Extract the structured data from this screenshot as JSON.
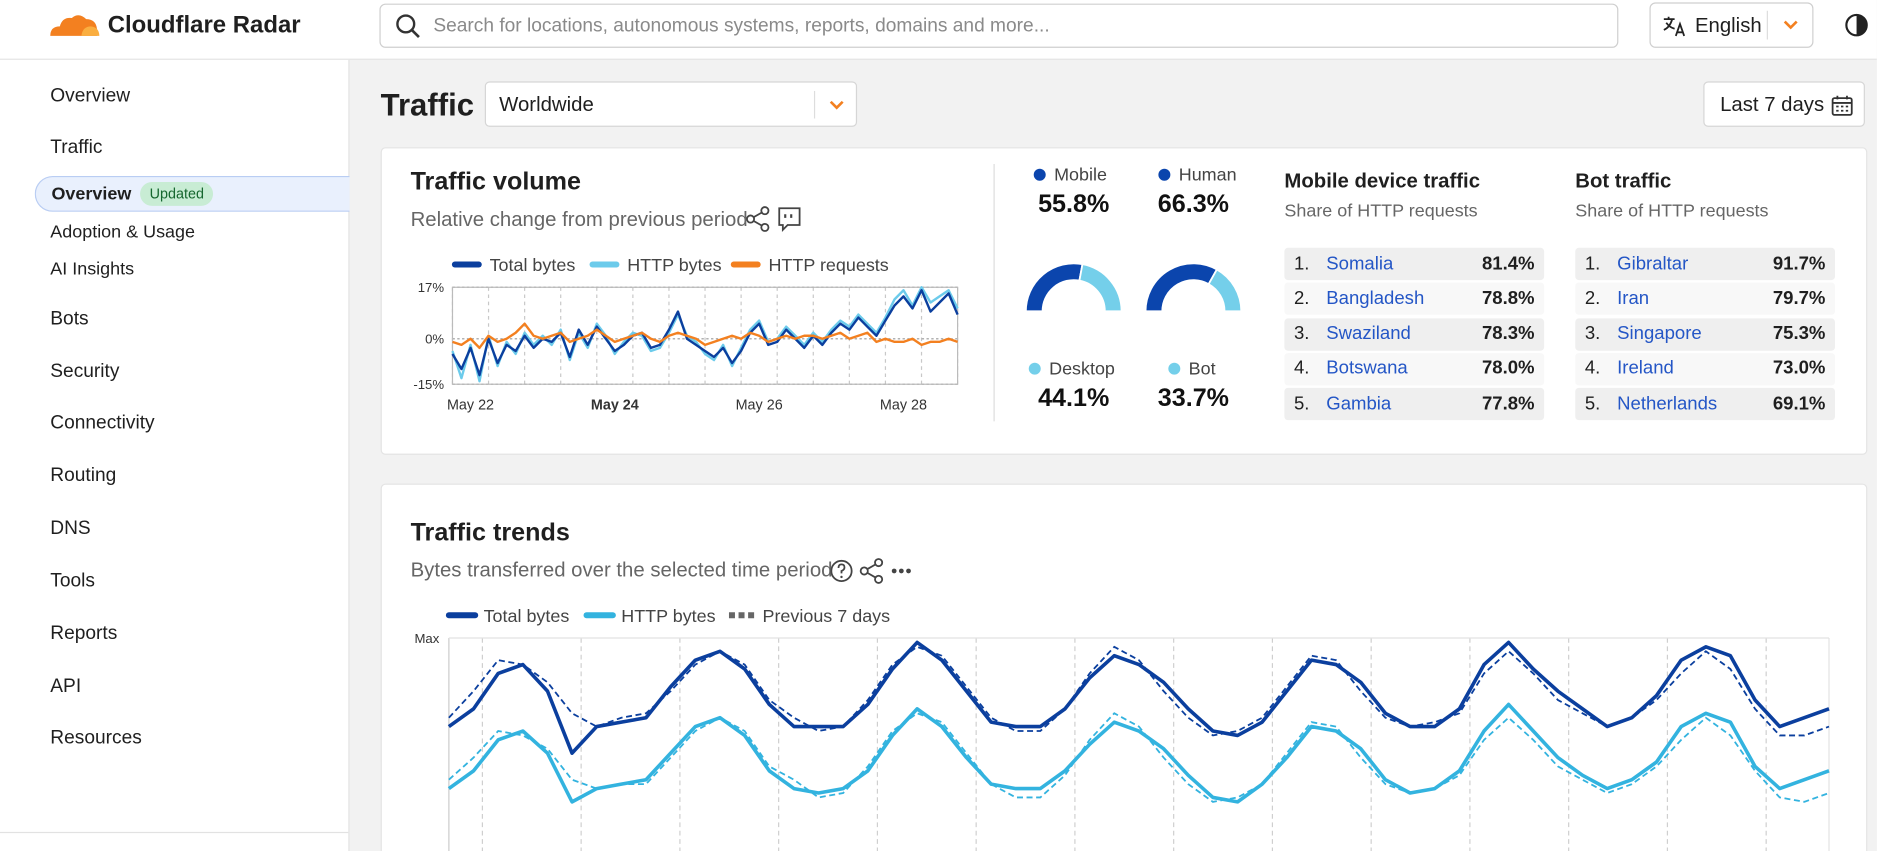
{
  "header": {
    "brand": "Cloudflare Radar",
    "search_placeholder": "Search for locations, autonomous systems, reports, domains and more...",
    "language": "English"
  },
  "sidebar": {
    "items": [
      {
        "label": "Overview"
      },
      {
        "label": "Traffic",
        "children": [
          {
            "label": "Overview",
            "badge": "Updated"
          },
          {
            "label": "Adoption & Usage"
          },
          {
            "label": "AI Insights"
          }
        ]
      },
      {
        "label": "Bots"
      },
      {
        "label": "Security"
      },
      {
        "label": "Connectivity"
      },
      {
        "label": "Routing"
      },
      {
        "label": "DNS"
      },
      {
        "label": "Tools"
      },
      {
        "label": "Reports"
      },
      {
        "label": "API"
      },
      {
        "label": "Resources"
      }
    ]
  },
  "toolbar": {
    "title": "Traffic",
    "location": "Worldwide",
    "date_range": "Last 7 days"
  },
  "traffic_volume": {
    "title": "Traffic volume",
    "subtitle": "Relative change from previous period"
  },
  "mobile_device_traffic": {
    "title": "Mobile device traffic",
    "subtitle": "Share of HTTP requests",
    "rows": [
      {
        "rank": "1.",
        "name": "Somalia",
        "value": "81.4%"
      },
      {
        "rank": "2.",
        "name": "Bangladesh",
        "value": "78.8%"
      },
      {
        "rank": "3.",
        "name": "Swaziland",
        "value": "78.3%"
      },
      {
        "rank": "4.",
        "name": "Botswana",
        "value": "78.0%"
      },
      {
        "rank": "5.",
        "name": "Gambia",
        "value": "77.8%"
      }
    ]
  },
  "bot_traffic": {
    "title": "Bot traffic",
    "subtitle": "Share of HTTP requests",
    "rows": [
      {
        "rank": "1.",
        "name": "Gibraltar",
        "value": "91.7%"
      },
      {
        "rank": "2.",
        "name": "Iran",
        "value": "79.7%"
      },
      {
        "rank": "3.",
        "name": "Singapore",
        "value": "75.3%"
      },
      {
        "rank": "4.",
        "name": "Ireland",
        "value": "73.0%"
      },
      {
        "rank": "5.",
        "name": "Netherlands",
        "value": "69.1%"
      }
    ]
  },
  "traffic_trends": {
    "title": "Traffic trends",
    "subtitle": "Bytes transferred over the selected time period"
  },
  "chart_data": [
    {
      "type": "line",
      "categories": [
        null,
        null,
        "May 22",
        null,
        null,
        null,
        null,
        null,
        null,
        null,
        null,
        null,
        null,
        null,
        null,
        null,
        null,
        null,
        "May 24",
        null,
        null,
        null,
        null,
        null,
        null,
        null,
        null,
        null,
        null,
        null,
        null,
        null,
        null,
        null,
        "May 26",
        null,
        null,
        null,
        null,
        null,
        null,
        null,
        null,
        null,
        null,
        null,
        null,
        null,
        null,
        null,
        "May 28",
        null,
        null,
        null,
        null,
        null,
        null
      ],
      "series": [
        {
          "name": "Total bytes",
          "color": "#0b3f9e",
          "values": [
            -5,
            -10,
            -3,
            -12,
            0,
            -8,
            -2,
            -4,
            1,
            -3,
            0,
            -1,
            2,
            -6,
            3,
            -2,
            4,
            0,
            -4,
            -2,
            1,
            2,
            -3,
            -2,
            3,
            9,
            0,
            -2,
            -4,
            -6,
            -3,
            -8,
            -4,
            2,
            5,
            -2,
            -1,
            3,
            0,
            -3,
            1,
            -2,
            2,
            5,
            3,
            7,
            4,
            1,
            6,
            11,
            14,
            10,
            16,
            9,
            12,
            15,
            8
          ]
        },
        {
          "name": "HTTP bytes",
          "color": "#6ccbeb",
          "values": [
            -4,
            -13,
            -2,
            -14,
            1,
            -9,
            -1,
            -5,
            2,
            -2,
            1,
            -2,
            3,
            -7,
            2,
            -3,
            5,
            1,
            -5,
            -1,
            2,
            1,
            -4,
            -3,
            2,
            8,
            1,
            -1,
            -5,
            -7,
            -2,
            -9,
            -3,
            3,
            6,
            -1,
            0,
            4,
            1,
            -2,
            2,
            -1,
            3,
            6,
            4,
            8,
            5,
            2,
            7,
            13,
            16,
            11,
            17,
            12,
            14,
            16,
            10
          ]
        },
        {
          "name": "HTTP requests",
          "color": "#f38020",
          "values": [
            -1,
            -2,
            0,
            -3,
            1,
            -1,
            0,
            2,
            5,
            1,
            0,
            1,
            2,
            -1,
            0,
            1,
            3,
            1,
            -1,
            0,
            1,
            2,
            0,
            -1,
            1,
            2,
            1,
            0,
            -2,
            -1,
            0,
            1,
            0,
            2,
            1,
            -1,
            0,
            1,
            0,
            1,
            1,
            0,
            1,
            2,
            0,
            1,
            2,
            -1,
            0,
            -1,
            -1,
            0,
            -2,
            -1,
            -1,
            0,
            -1
          ]
        }
      ],
      "ylim": [
        -15,
        17
      ],
      "yticks": [
        {
          "value": 17,
          "label": "17%"
        },
        {
          "value": 0,
          "label": "0%"
        },
        {
          "value": -15,
          "label": "-15%"
        }
      ]
    },
    {
      "type": "donut",
      "categories": [
        "Mobile",
        "Desktop"
      ],
      "values": [
        55.8,
        44.1
      ],
      "value_labels": [
        "55.8%",
        "44.1%"
      ],
      "colors": [
        "#0b45ad",
        "#74cfea"
      ]
    },
    {
      "type": "donut",
      "categories": [
        "Human",
        "Bot"
      ],
      "values": [
        66.3,
        33.7
      ],
      "value_labels": [
        "66.3%",
        "33.7%"
      ],
      "colors": [
        "#0b45ad",
        "#74cfea"
      ]
    },
    {
      "type": "line",
      "series": [
        {
          "name": "Total bytes",
          "color": "#0b3f9e",
          "values": [
            80,
            84,
            92,
            94,
            88,
            74,
            80,
            81,
            82,
            89,
            95,
            97,
            93,
            85,
            80,
            80,
            80,
            85,
            93,
            99,
            95,
            88,
            81,
            80,
            80,
            84,
            91,
            96,
            94,
            90,
            84,
            79,
            78,
            81,
            88,
            95,
            94,
            90,
            83,
            80,
            80,
            84,
            94,
            99,
            93,
            88,
            84,
            80,
            82,
            87,
            95,
            98,
            96,
            86,
            80,
            82,
            84
          ],
          "previous": [
            82,
            88,
            95,
            94,
            90,
            83,
            80,
            82,
            83,
            88,
            94,
            97,
            94,
            86,
            82,
            79,
            80,
            86,
            94,
            98,
            96,
            89,
            82,
            79,
            79,
            84,
            92,
            98,
            95,
            88,
            82,
            78,
            79,
            82,
            89,
            96,
            95,
            88,
            82,
            80,
            81,
            83,
            92,
            97,
            92,
            86,
            83,
            80,
            82,
            86,
            92,
            97,
            93,
            84,
            78,
            78,
            80
          ]
        },
        {
          "name": "HTTP bytes",
          "color": "#33b3df",
          "values": [
            66,
            70,
            77,
            79,
            74,
            63,
            66,
            67,
            68,
            74,
            80,
            82,
            78,
            70,
            66,
            65,
            66,
            70,
            78,
            84,
            80,
            73,
            67,
            66,
            66,
            70,
            76,
            81,
            79,
            75,
            69,
            64,
            63,
            67,
            73,
            80,
            79,
            75,
            68,
            65,
            66,
            70,
            79,
            85,
            79,
            73,
            69,
            66,
            68,
            72,
            80,
            83,
            81,
            71,
            66,
            68,
            70
          ],
          "previous": [
            68,
            73,
            79,
            78,
            75,
            68,
            66,
            67,
            67,
            73,
            79,
            82,
            79,
            71,
            68,
            64,
            65,
            71,
            79,
            83,
            81,
            74,
            67,
            64,
            64,
            69,
            77,
            83,
            80,
            73,
            67,
            63,
            64,
            67,
            74,
            81,
            80,
            73,
            67,
            65,
            66,
            69,
            77,
            82,
            77,
            71,
            68,
            65,
            67,
            71,
            77,
            82,
            78,
            70,
            64,
            63,
            65
          ]
        }
      ],
      "previous_label": "Previous 7 days",
      "previous_color": "#666666",
      "ylim": [
        0,
        100
      ],
      "yticks": [
        {
          "value": 100,
          "label": "Max"
        }
      ]
    }
  ]
}
